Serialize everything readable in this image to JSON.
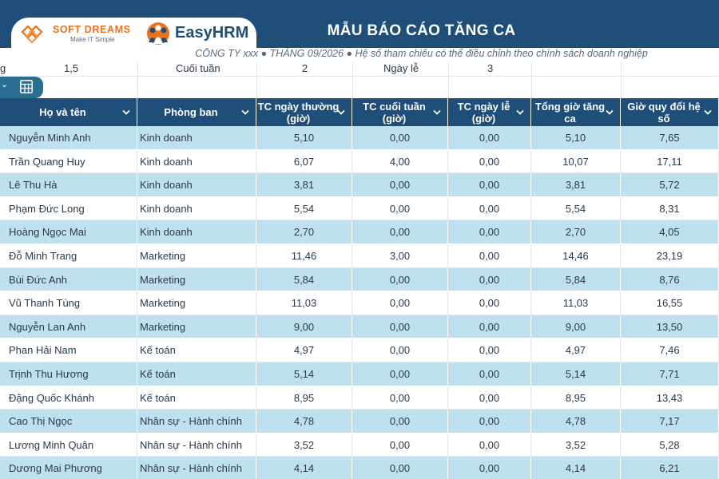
{
  "header": {
    "title": "MẪU BÁO CÁO TĂNG CA",
    "subtitle": "CÔNG TY xxx ● THÁNG 09/2026 ● Hệ số tham chiếu có thể điều chỉnh theo chính sách doanh nghiệp",
    "brand_softdreams": "SOFT DREAMS",
    "brand_softdreams_tagline": "Make IT Simple",
    "brand_easy": "Easy",
    "brand_hrm": "HRM",
    "brand_orange": "#e8731c",
    "brand_navy": "#1f4e79"
  },
  "coefficients": {
    "partial_label": "g",
    "weekday_value": "1,5",
    "weekend_label": "Cuối tuần",
    "weekend_value": "2",
    "holiday_label": "Ngày lễ",
    "holiday_value": "3"
  },
  "toolbar": {
    "collapse_icon": "chevron-down-icon",
    "sheet_icon": "spreadsheet-icon"
  },
  "table": {
    "header_color": "#1f4e79",
    "stripe_color": "#bfe0ef",
    "columns": [
      "Họ và tên",
      "Phòng ban",
      "TC ngày thường (giờ)",
      "TC cuối tuần (giờ)",
      "TC ngày lễ (giờ)",
      "Tổng giờ tăng ca",
      "Giờ quy đổi hệ số"
    ],
    "rows": [
      [
        "Nguyễn Minh Anh",
        "Kinh doanh",
        "5,10",
        "0,00",
        "0,00",
        "5,10",
        "7,65"
      ],
      [
        "Trần Quang Huy",
        "Kinh doanh",
        "6,07",
        "4,00",
        "0,00",
        "10,07",
        "17,11"
      ],
      [
        "Lê Thu Hà",
        "Kinh doanh",
        "3,81",
        "0,00",
        "0,00",
        "3,81",
        "5,72"
      ],
      [
        "Phạm Đức Long",
        "Kinh doanh",
        "5,54",
        "0,00",
        "0,00",
        "5,54",
        "8,31"
      ],
      [
        "Hoàng Ngọc Mai",
        "Kinh doanh",
        "2,70",
        "0,00",
        "0,00",
        "2,70",
        "4,05"
      ],
      [
        "Đỗ Minh Trang",
        "Marketing",
        "11,46",
        "3,00",
        "0,00",
        "14,46",
        "23,19"
      ],
      [
        "Bùi Đức Anh",
        "Marketing",
        "5,84",
        "0,00",
        "0,00",
        "5,84",
        "8,76"
      ],
      [
        "Vũ Thanh Tùng",
        "Marketing",
        "11,03",
        "0,00",
        "0,00",
        "11,03",
        "16,55"
      ],
      [
        "Nguyễn Lan Anh",
        "Marketing",
        "9,00",
        "0,00",
        "0,00",
        "9,00",
        "13,50"
      ],
      [
        "Phan Hải Nam",
        "Kế toán",
        "4,97",
        "0,00",
        "0,00",
        "4,97",
        "7,46"
      ],
      [
        "Trịnh Thu Hương",
        "Kế toán",
        "5,14",
        "0,00",
        "0,00",
        "5,14",
        "7,71"
      ],
      [
        "Đặng Quốc Khánh",
        "Kế toán",
        "8,95",
        "0,00",
        "0,00",
        "8,95",
        "13,43"
      ],
      [
        "Cao Thị Ngọc",
        "Nhân sự - Hành chính",
        "4,78",
        "0,00",
        "0,00",
        "4,78",
        "7,17"
      ],
      [
        "Lương Minh Quân",
        "Nhân sự - Hành chính",
        "3,52",
        "0,00",
        "0,00",
        "3,52",
        "5,28"
      ],
      [
        "Dương Mai Phương",
        "Nhân sự - Hành chính",
        "4,14",
        "0,00",
        "0,00",
        "4,14",
        "6,21"
      ]
    ]
  }
}
